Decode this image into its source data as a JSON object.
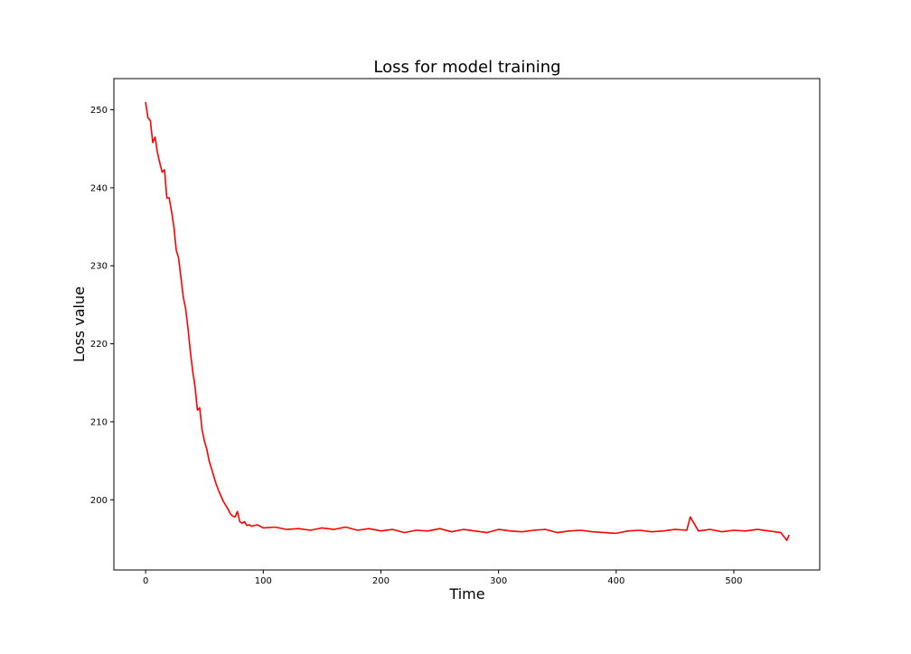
{
  "chart_data": {
    "type": "line",
    "title": "Loss for model training",
    "xlabel": "Time",
    "ylabel": "Loss value",
    "xlim": [
      -27,
      573
    ],
    "ylim": [
      191,
      254
    ],
    "xticks": [
      0,
      100,
      200,
      300,
      400,
      500
    ],
    "yticks": [
      200,
      210,
      220,
      230,
      240,
      250
    ],
    "grid": false,
    "legend": "none",
    "series": [
      {
        "color": "#ff0000",
        "x": [
          0,
          2,
          4,
          6,
          8,
          10,
          12,
          14,
          16,
          18,
          20,
          22,
          24,
          26,
          28,
          30,
          32,
          34,
          36,
          38,
          40,
          42,
          44,
          46,
          48,
          50,
          52,
          54,
          56,
          58,
          60,
          62,
          64,
          66,
          68,
          70,
          72,
          74,
          76,
          78,
          80,
          82,
          84,
          86,
          88,
          90,
          95,
          100,
          110,
          120,
          130,
          140,
          150,
          160,
          170,
          180,
          190,
          200,
          210,
          220,
          230,
          240,
          250,
          260,
          270,
          280,
          290,
          300,
          310,
          320,
          330,
          340,
          350,
          360,
          370,
          380,
          390,
          400,
          410,
          420,
          430,
          440,
          450,
          460,
          463,
          470,
          480,
          490,
          500,
          510,
          520,
          530,
          540,
          545,
          547
        ],
        "y": [
          251.0,
          249.0,
          248.6,
          245.8,
          246.5,
          244.5,
          243.2,
          242.0,
          242.3,
          238.7,
          238.7,
          237.0,
          235.0,
          232.0,
          231.0,
          228.5,
          226.0,
          224.5,
          222.0,
          219.0,
          216.5,
          214.5,
          211.5,
          211.8,
          209.0,
          207.5,
          206.5,
          205.0,
          204.0,
          203.0,
          202.0,
          201.2,
          200.5,
          199.8,
          199.3,
          198.8,
          198.2,
          197.9,
          197.8,
          198.5,
          197.2,
          197.0,
          197.2,
          196.7,
          196.8,
          196.6,
          196.8,
          196.4,
          196.5,
          196.2,
          196.3,
          196.1,
          196.4,
          196.2,
          196.5,
          196.1,
          196.3,
          196.0,
          196.2,
          195.8,
          196.1,
          196.0,
          196.3,
          195.9,
          196.2,
          196.0,
          195.8,
          196.2,
          196.0,
          195.9,
          196.1,
          196.2,
          195.8,
          196.0,
          196.1,
          195.9,
          195.8,
          195.7,
          196.0,
          196.1,
          195.9,
          196.0,
          196.2,
          196.1,
          197.8,
          196.0,
          196.2,
          195.9,
          196.1,
          196.0,
          196.2,
          196.0,
          195.8,
          194.8,
          195.5
        ]
      }
    ]
  }
}
